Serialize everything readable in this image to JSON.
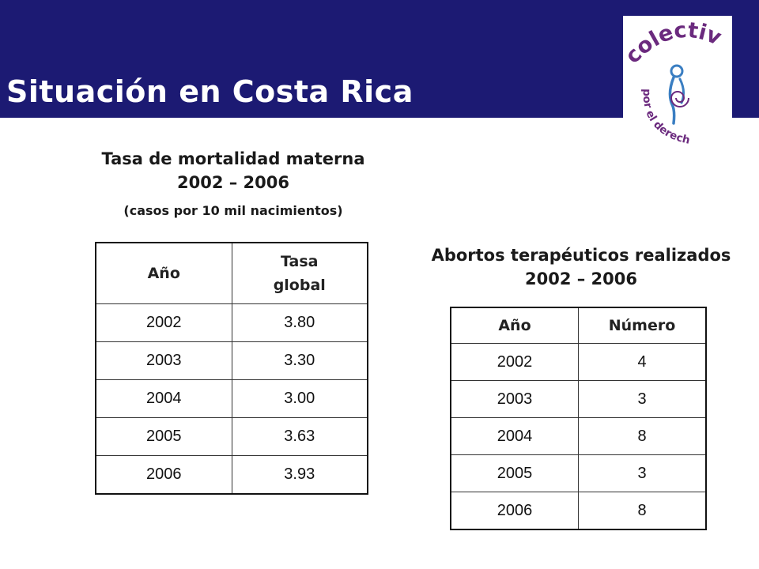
{
  "slide": {
    "title": "Situación en Costa Rica"
  },
  "logo": {
    "text_top": "colectiva",
    "text_bottom": "por el derecho a decidir"
  },
  "mortality": {
    "title_line1": "Tasa de mortalidad materna",
    "title_line2": "2002 – 2006",
    "note": "(casos por 10 mil nacimientos)",
    "headers": [
      "Año",
      "Tasa global"
    ],
    "rows": [
      [
        "2002",
        "3.80"
      ],
      [
        "2003",
        "3.30"
      ],
      [
        "2004",
        "3.00"
      ],
      [
        "2005",
        "3.63"
      ],
      [
        "2006",
        "3.93"
      ]
    ]
  },
  "abortions": {
    "title_line1": "Abortos terapéuticos realizados",
    "title_line2": "2002 – 2006",
    "headers": [
      "Año",
      "Número"
    ],
    "rows": [
      [
        "2002",
        "4"
      ],
      [
        "2003",
        "3"
      ],
      [
        "2004",
        "8"
      ],
      [
        "2005",
        "3"
      ],
      [
        "2006",
        "8"
      ]
    ]
  },
  "colors": {
    "header_bg": "#1c1a73",
    "logo_purple": "#6b2a7e",
    "logo_blue": "#3a7ec2"
  }
}
